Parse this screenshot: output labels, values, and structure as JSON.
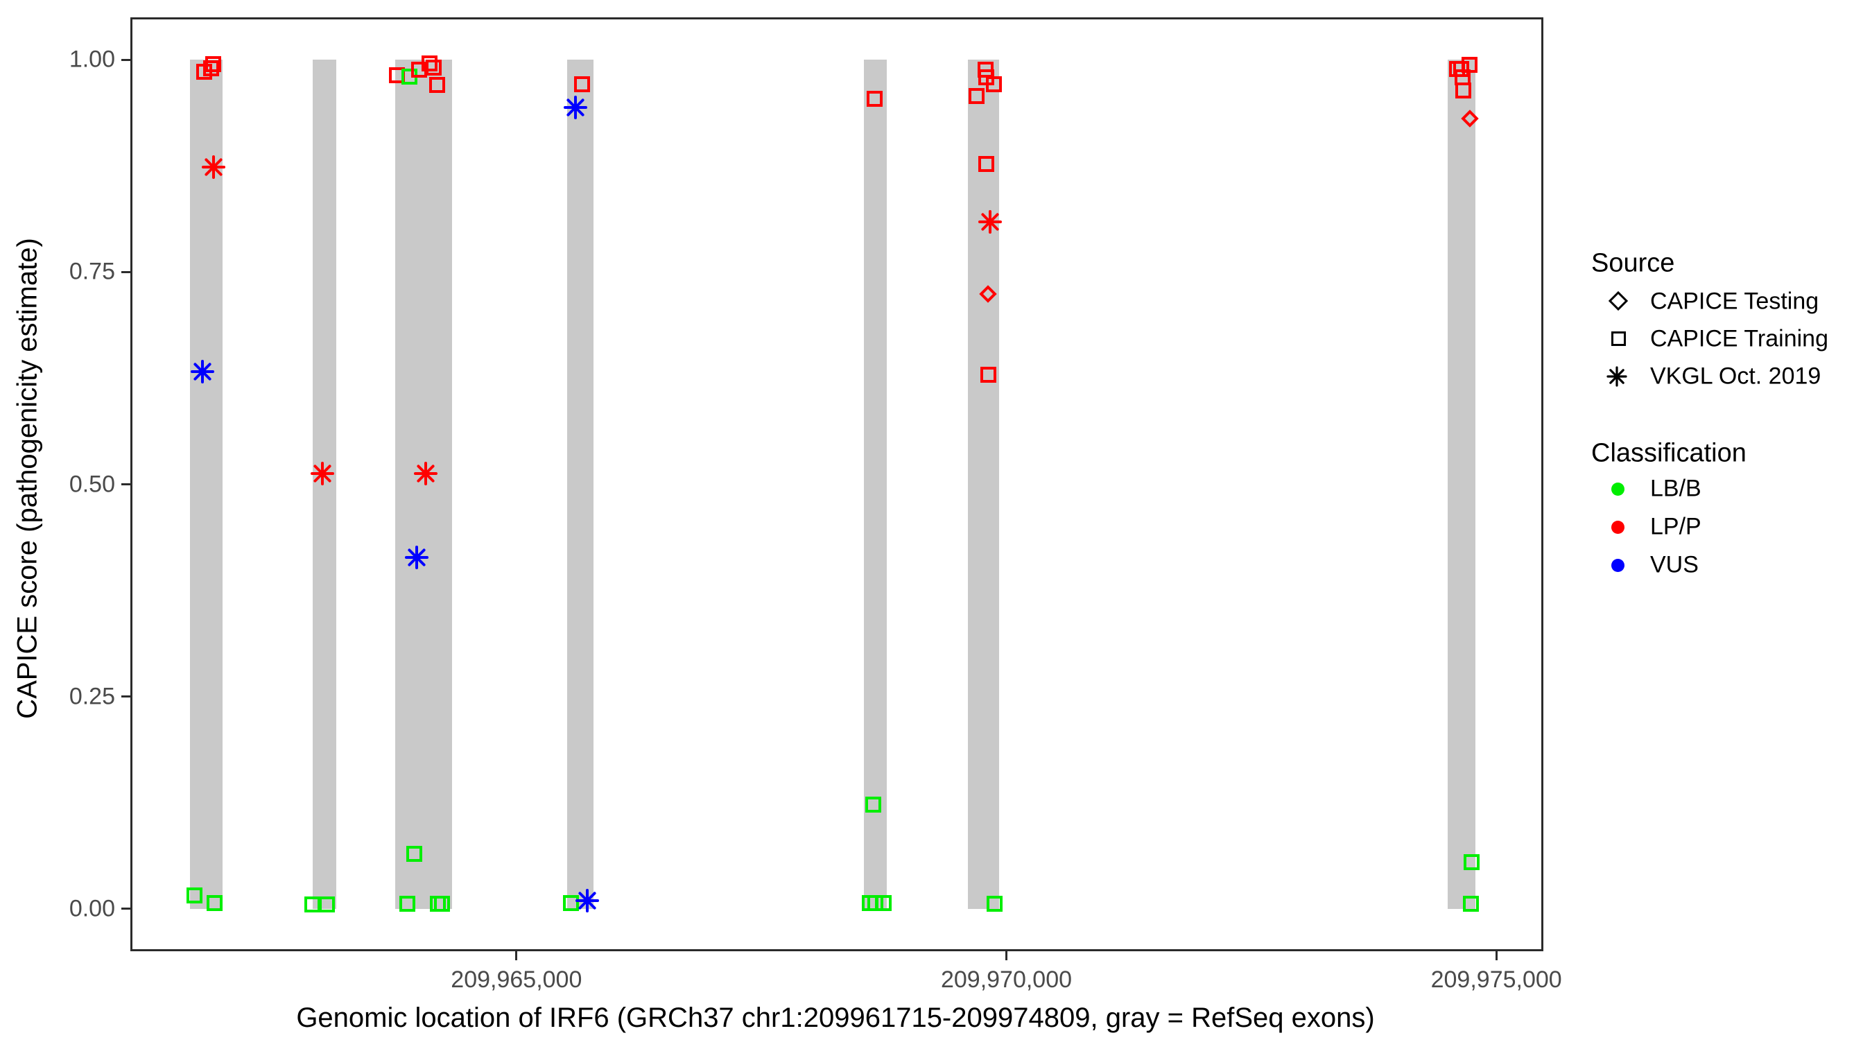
{
  "chart_data": {
    "type": "scatter",
    "title": "",
    "xlabel": "Genomic location of IRF6 (GRCh37 chr1:209961715-209974809, gray = RefSeq exons)",
    "ylabel": "CAPICE score (pathogenicity estimate)",
    "xlim": [
      209961060,
      209975480
    ],
    "ylim": [
      -0.05,
      1.05
    ],
    "x_ticks": [
      {
        "value": 209965000,
        "label": "209,965,000"
      },
      {
        "value": 209970000,
        "label": "209,970,000"
      },
      {
        "value": 209975000,
        "label": "209,975,000"
      }
    ],
    "y_ticks": [
      {
        "value": 0.0,
        "label": "0.00"
      },
      {
        "value": 0.25,
        "label": "0.25"
      },
      {
        "value": 0.5,
        "label": "0.50"
      },
      {
        "value": 0.75,
        "label": "0.75"
      },
      {
        "value": 1.0,
        "label": "1.00"
      }
    ],
    "exons_note": "gray = RefSeq exons",
    "exons": [
      {
        "start": 209961670,
        "end": 209962000
      },
      {
        "start": 209962920,
        "end": 209963160
      },
      {
        "start": 209963765,
        "end": 209964345
      },
      {
        "start": 209965515,
        "end": 209965785
      },
      {
        "start": 209968545,
        "end": 209968780
      },
      {
        "start": 209969605,
        "end": 209969925
      },
      {
        "start": 209974505,
        "end": 209974790
      }
    ],
    "shape_by_source": {
      "CAPICE Testing": "diamond",
      "CAPICE Training": "square",
      "VKGL Oct. 2019": "asterisk"
    },
    "points": [
      {
        "pos": 209961817,
        "score": 0.986,
        "classification": "LP/P",
        "source": "CAPICE Training"
      },
      {
        "pos": 209961881,
        "score": 0.99,
        "classification": "LP/P",
        "source": "CAPICE Training"
      },
      {
        "pos": 209961909,
        "score": 0.995,
        "classification": "LP/P",
        "source": "CAPICE Training"
      },
      {
        "pos": 209961909,
        "score": 0.874,
        "classification": "LP/P",
        "source": "VKGL Oct. 2019"
      },
      {
        "pos": 209961796,
        "score": 0.633,
        "classification": "VUS",
        "source": "VKGL Oct. 2019"
      },
      {
        "pos": 209961718,
        "score": 0.016,
        "classification": "LB/B",
        "source": "CAPICE Training"
      },
      {
        "pos": 209961923,
        "score": 0.007,
        "classification": "LB/B",
        "source": "CAPICE Training"
      },
      {
        "pos": 209963020,
        "score": 0.513,
        "classification": "LP/P",
        "source": "VKGL Oct. 2019"
      },
      {
        "pos": 209962914,
        "score": 0.005,
        "classification": "LB/B",
        "source": "CAPICE Training"
      },
      {
        "pos": 209963063,
        "score": 0.005,
        "classification": "LB/B",
        "source": "CAPICE Training"
      },
      {
        "pos": 209963784,
        "score": 0.982,
        "classification": "LP/P",
        "source": "CAPICE Training"
      },
      {
        "pos": 209963905,
        "score": 0.98,
        "classification": "LB/B",
        "source": "CAPICE Training"
      },
      {
        "pos": 209964004,
        "score": 0.988,
        "classification": "LP/P",
        "source": "CAPICE Training"
      },
      {
        "pos": 209964110,
        "score": 0.996,
        "classification": "LP/P",
        "source": "CAPICE Training"
      },
      {
        "pos": 209964159,
        "score": 0.991,
        "classification": "LP/P",
        "source": "CAPICE Training"
      },
      {
        "pos": 209964188,
        "score": 0.97,
        "classification": "LP/P",
        "source": "CAPICE Training"
      },
      {
        "pos": 209964075,
        "score": 0.513,
        "classification": "LP/P",
        "source": "VKGL Oct. 2019"
      },
      {
        "pos": 209963983,
        "score": 0.414,
        "classification": "VUS",
        "source": "VKGL Oct. 2019"
      },
      {
        "pos": 209963954,
        "score": 0.065,
        "classification": "LB/B",
        "source": "CAPICE Training"
      },
      {
        "pos": 209963890,
        "score": 0.006,
        "classification": "LB/B",
        "source": "CAPICE Training"
      },
      {
        "pos": 209964195,
        "score": 0.006,
        "classification": "LB/B",
        "source": "CAPICE Training"
      },
      {
        "pos": 209964237,
        "score": 0.006,
        "classification": "LB/B",
        "source": "CAPICE Training"
      },
      {
        "pos": 209965667,
        "score": 0.971,
        "classification": "LP/P",
        "source": "CAPICE Training"
      },
      {
        "pos": 209965603,
        "score": 0.944,
        "classification": "VUS",
        "source": "VKGL Oct. 2019"
      },
      {
        "pos": 209965553,
        "score": 0.007,
        "classification": "LB/B",
        "source": "CAPICE Training"
      },
      {
        "pos": 209965723,
        "score": 0.01,
        "classification": "VUS",
        "source": "VKGL Oct. 2019"
      },
      {
        "pos": 209968653,
        "score": 0.954,
        "classification": "LP/P",
        "source": "CAPICE Training"
      },
      {
        "pos": 209968639,
        "score": 0.123,
        "classification": "LB/B",
        "source": "CAPICE Training"
      },
      {
        "pos": 209968603,
        "score": 0.007,
        "classification": "LB/B",
        "source": "CAPICE Training"
      },
      {
        "pos": 209968660,
        "score": 0.007,
        "classification": "LB/B",
        "source": "CAPICE Training"
      },
      {
        "pos": 209968745,
        "score": 0.007,
        "classification": "LB/B",
        "source": "CAPICE Training"
      },
      {
        "pos": 209969785,
        "score": 0.988,
        "classification": "LP/P",
        "source": "CAPICE Training"
      },
      {
        "pos": 209969792,
        "score": 0.979,
        "classification": "LP/P",
        "source": "CAPICE Training"
      },
      {
        "pos": 209969870,
        "score": 0.971,
        "classification": "LP/P",
        "source": "CAPICE Training"
      },
      {
        "pos": 209969693,
        "score": 0.957,
        "classification": "LP/P",
        "source": "CAPICE Training"
      },
      {
        "pos": 209969792,
        "score": 0.877,
        "classification": "LP/P",
        "source": "CAPICE Training"
      },
      {
        "pos": 209969834,
        "score": 0.809,
        "classification": "LP/P",
        "source": "VKGL Oct. 2019"
      },
      {
        "pos": 209969813,
        "score": 0.724,
        "classification": "LP/P",
        "source": "CAPICE Testing"
      },
      {
        "pos": 209969813,
        "score": 0.629,
        "classification": "LP/P",
        "source": "CAPICE Training"
      },
      {
        "pos": 209969877,
        "score": 0.006,
        "classification": "LB/B",
        "source": "CAPICE Training"
      },
      {
        "pos": 209974724,
        "score": 0.994,
        "classification": "LP/P",
        "source": "CAPICE Training"
      },
      {
        "pos": 209974597,
        "score": 0.989,
        "classification": "LP/P",
        "source": "CAPICE Training"
      },
      {
        "pos": 209974639,
        "score": 0.989,
        "classification": "LP/P",
        "source": "CAPICE Training"
      },
      {
        "pos": 209974653,
        "score": 0.979,
        "classification": "LP/P",
        "source": "CAPICE Training"
      },
      {
        "pos": 209974660,
        "score": 0.964,
        "classification": "LP/P",
        "source": "CAPICE Training"
      },
      {
        "pos": 209974731,
        "score": 0.931,
        "classification": "LP/P",
        "source": "CAPICE Testing"
      },
      {
        "pos": 209974745,
        "score": 0.055,
        "classification": "LB/B",
        "source": "CAPICE Training"
      },
      {
        "pos": 209974738,
        "score": 0.006,
        "classification": "LB/B",
        "source": "CAPICE Training"
      }
    ]
  },
  "colors": {
    "LB/B": "#00EE00",
    "LP/P": "#FF0000",
    "VUS": "#0000FF",
    "exon": "#C9C9C9"
  },
  "legend": {
    "source": {
      "title": "Source",
      "items": [
        {
          "label": "CAPICE Testing",
          "shape": "diamond"
        },
        {
          "label": "CAPICE Training",
          "shape": "square"
        },
        {
          "label": "VKGL Oct. 2019",
          "shape": "asterisk"
        }
      ]
    },
    "classification": {
      "title": "Classification",
      "items": [
        {
          "label": "LB/B",
          "color": "#00EE00"
        },
        {
          "label": "LP/P",
          "color": "#FF0000"
        },
        {
          "label": "VUS",
          "color": "#0000FF"
        }
      ]
    }
  }
}
